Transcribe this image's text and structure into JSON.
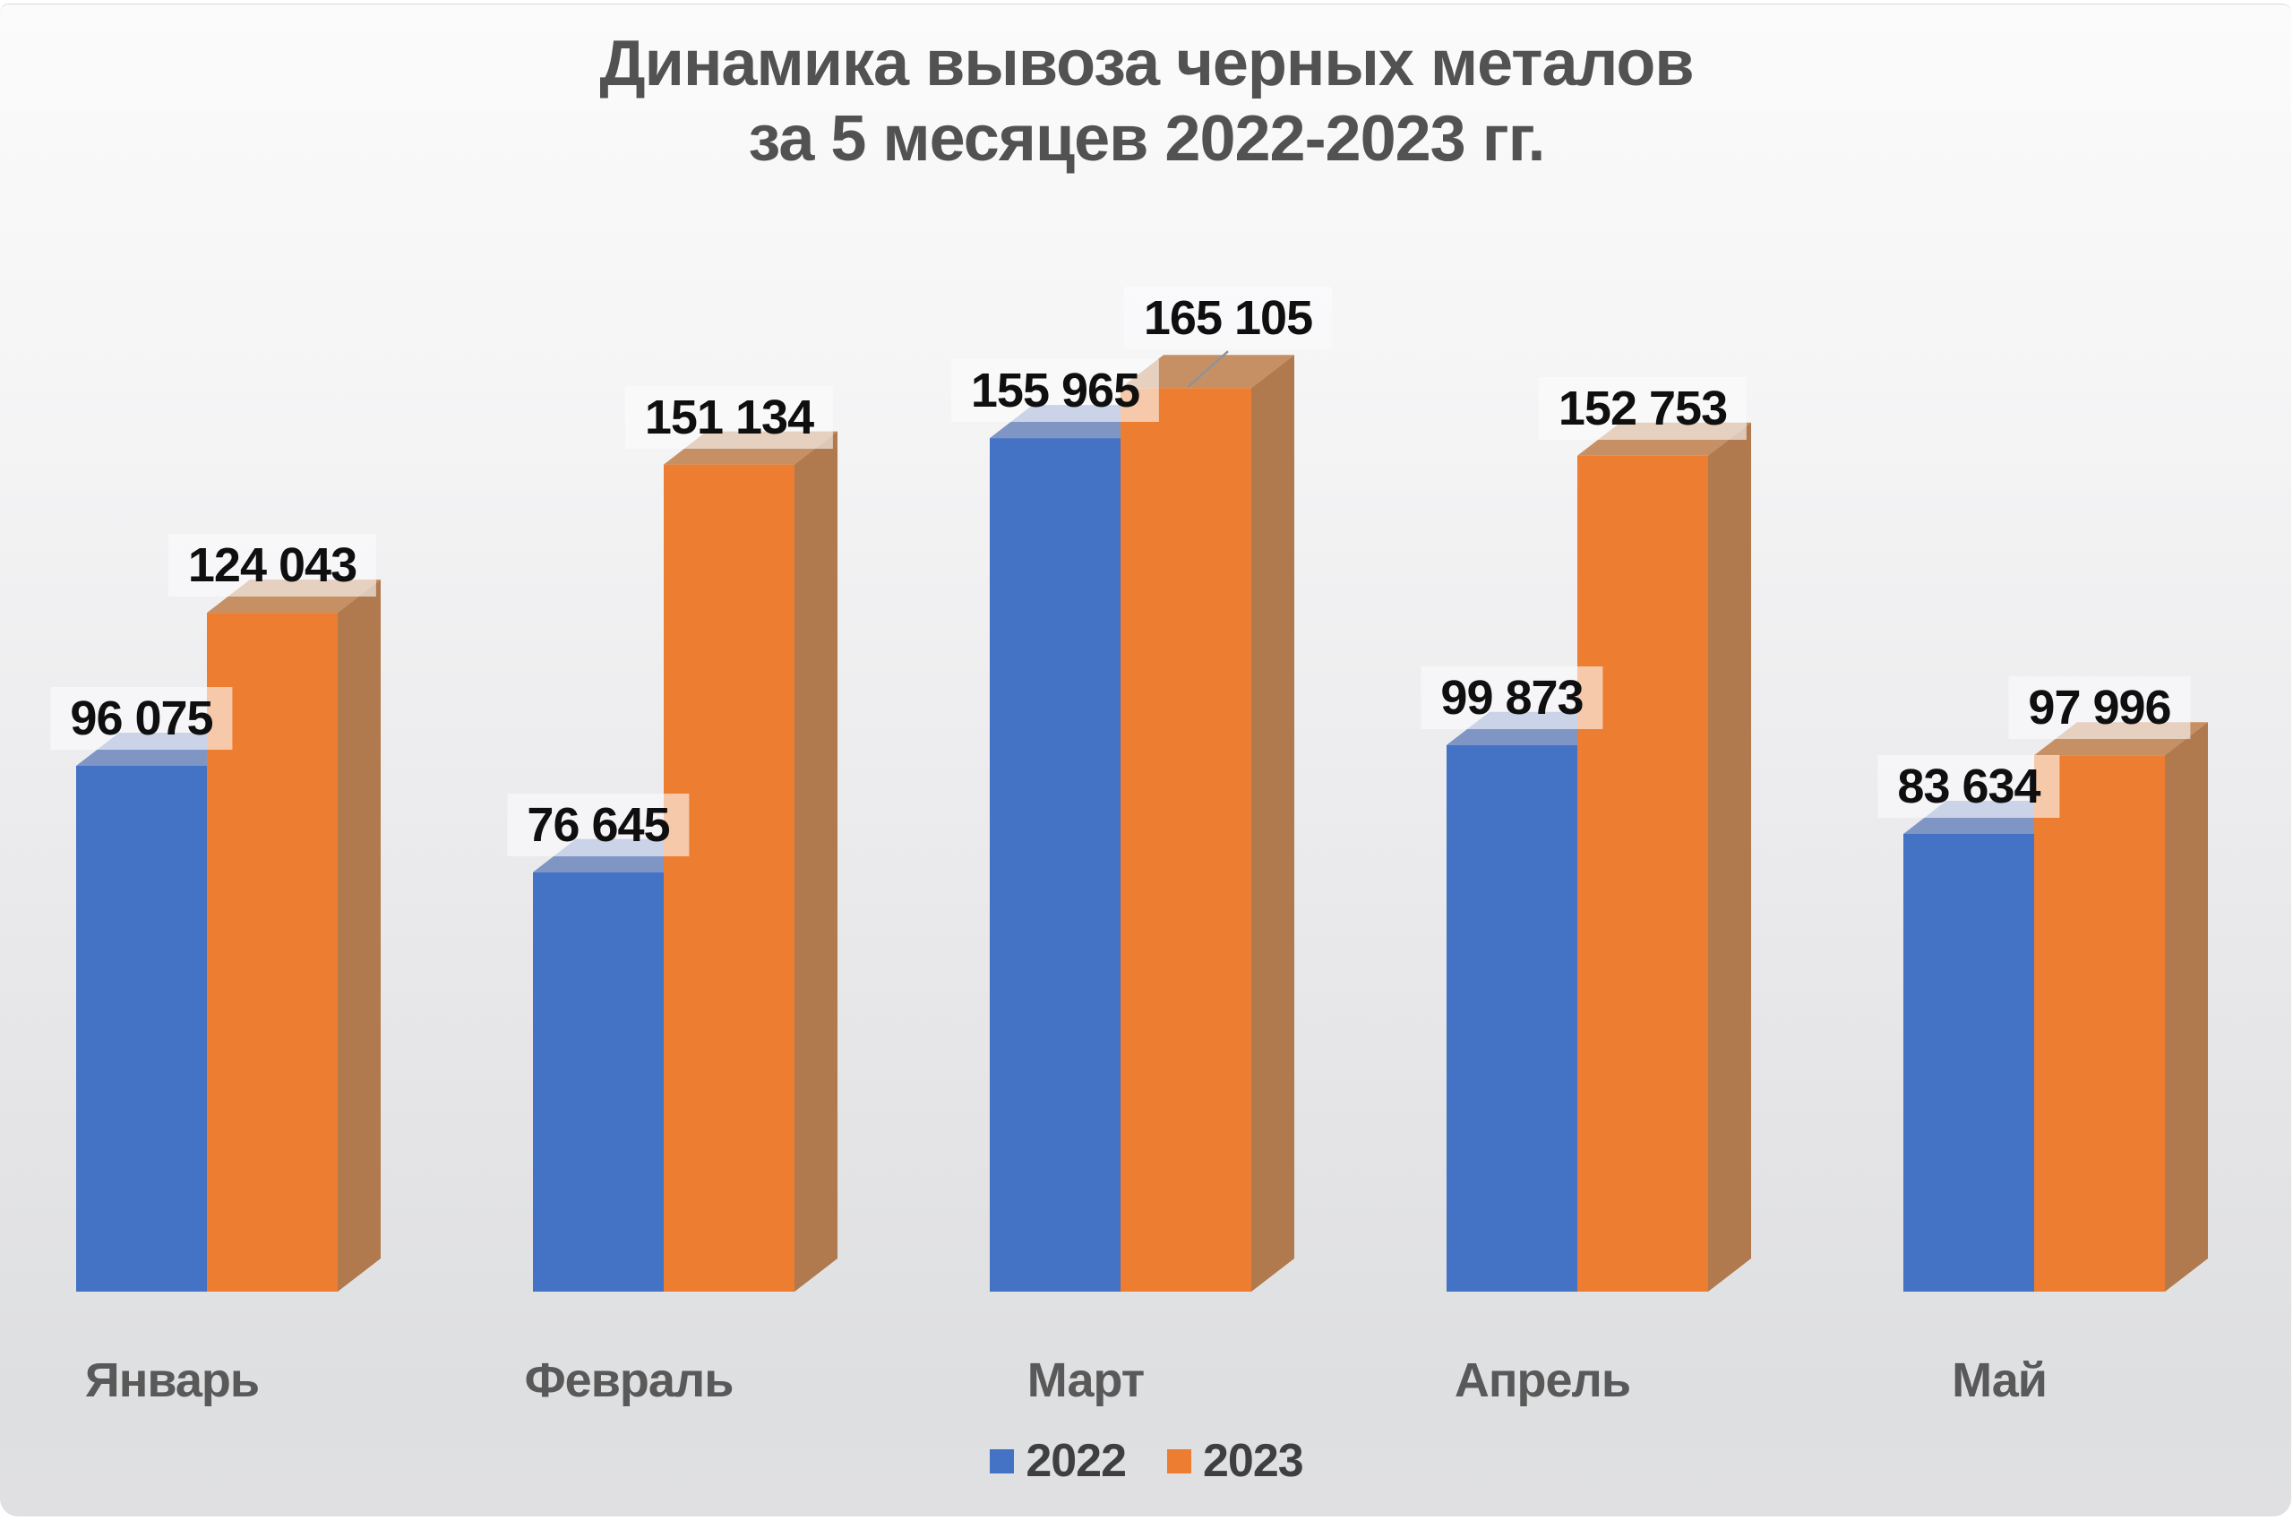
{
  "chart_data": {
    "type": "bar",
    "style": "3d-clustered",
    "title": "Динамика вывоза черных металов за 5 месяцев 2022-2023 гг.",
    "title_lines": [
      "Динамика вывоза черных металов",
      "за 5 месяцев 2022-2023 гг."
    ],
    "categories": [
      "Январь",
      "Февраль",
      "Март",
      "Апрель",
      "Май"
    ],
    "series": [
      {
        "name": "2022",
        "color": "#4472C4",
        "values": [
          96075,
          76645,
          155965,
          99873,
          83634
        ],
        "labels": [
          "96 075",
          "76 645",
          "155 965",
          "99 873",
          "83 634"
        ]
      },
      {
        "name": "2023",
        "color": "#ED7D31",
        "values": [
          124043,
          151134,
          165105,
          152753,
          97996
        ],
        "labels": [
          "124 043",
          "151 134",
          "165 105",
          "152 753",
          "97 996"
        ]
      }
    ],
    "legend": {
      "position": "bottom",
      "entries": [
        "2022",
        "2023"
      ]
    },
    "gridlines": false,
    "data_labels": true,
    "value_axis_visible": false,
    "ylim": [
      0,
      165105
    ]
  },
  "colors": {
    "blue_front": "#4472C4",
    "blue_top": "#7F96C5",
    "orange_front": "#ED7D31",
    "orange_top": "#C69064",
    "orange_side": "#B0794E",
    "title_text": "#525252",
    "value_label_text": "#0F0F0F",
    "category_text": "#595959",
    "legend_text": "#3F3F3F",
    "leader_line": "#8F9399",
    "background_top": "#FBFBFB",
    "background_bottom": "#DEDFE1"
  }
}
